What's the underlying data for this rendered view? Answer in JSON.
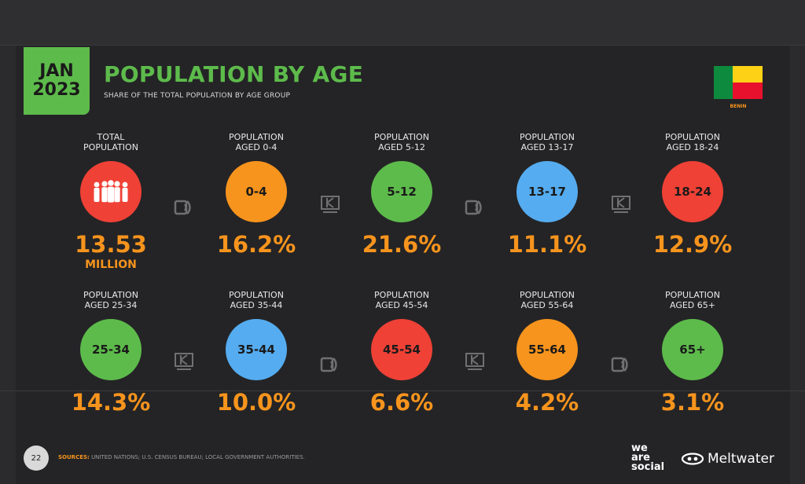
{
  "header": {
    "badge_month": "JAN",
    "badge_year": "2023",
    "title": "POPULATION BY AGE",
    "subtitle": "SHARE OF THE TOTAL POPULATION BY AGE GROUP",
    "country": "BENIN"
  },
  "row1": [
    {
      "label1": "TOTAL",
      "label2": "POPULATION",
      "circle": "",
      "value": "13.53",
      "unit": "MILLION",
      "color": "#ef4136"
    },
    {
      "label1": "POPULATION",
      "label2": "AGED 0-4",
      "circle": "0-4",
      "value": "16.2%",
      "color": "#f7941d"
    },
    {
      "label1": "POPULATION",
      "label2": "AGED 5-12",
      "circle": "5-12",
      "value": "21.6%",
      "color": "#5dbb4b"
    },
    {
      "label1": "POPULATION",
      "label2": "AGED 13-17",
      "circle": "13-17",
      "value": "11.1%",
      "color": "#55acf0"
    },
    {
      "label1": "POPULATION",
      "label2": "AGED 18-24",
      "circle": "18-24",
      "value": "12.9%",
      "color": "#ef4136"
    }
  ],
  "row2": [
    {
      "label1": "POPULATION",
      "label2": "AGED 25-34",
      "circle": "25-34",
      "value": "14.3%",
      "color": "#5dbb4b"
    },
    {
      "label1": "POPULATION",
      "label2": "AGED 35-44",
      "circle": "35-44",
      "value": "10.0%",
      "color": "#55acf0"
    },
    {
      "label1": "POPULATION",
      "label2": "AGED 45-54",
      "circle": "45-54",
      "value": "6.6%",
      "color": "#ef4136"
    },
    {
      "label1": "POPULATION",
      "label2": "AGED 55-64",
      "circle": "55-64",
      "value": "4.2%",
      "color": "#f7941d"
    },
    {
      "label1": "POPULATION",
      "label2": "AGED 65+",
      "circle": "65+",
      "value": "3.1%",
      "color": "#5dbb4b"
    }
  ],
  "footer": {
    "page": "22",
    "sources_label": "SOURCES:",
    "sources_text": "UNITED NATIONS; U.S. CENSUS BUREAU; LOCAL GOVERNMENT AUTHORITIES.",
    "brand1_line1": "we",
    "brand1_line2": "are",
    "brand1_line3": "social",
    "brand2": "Meltwater"
  },
  "icons": {
    "people": "people-group-icon",
    "watermark_a": "datareportal-icon",
    "watermark_b": "kepios-icon"
  }
}
